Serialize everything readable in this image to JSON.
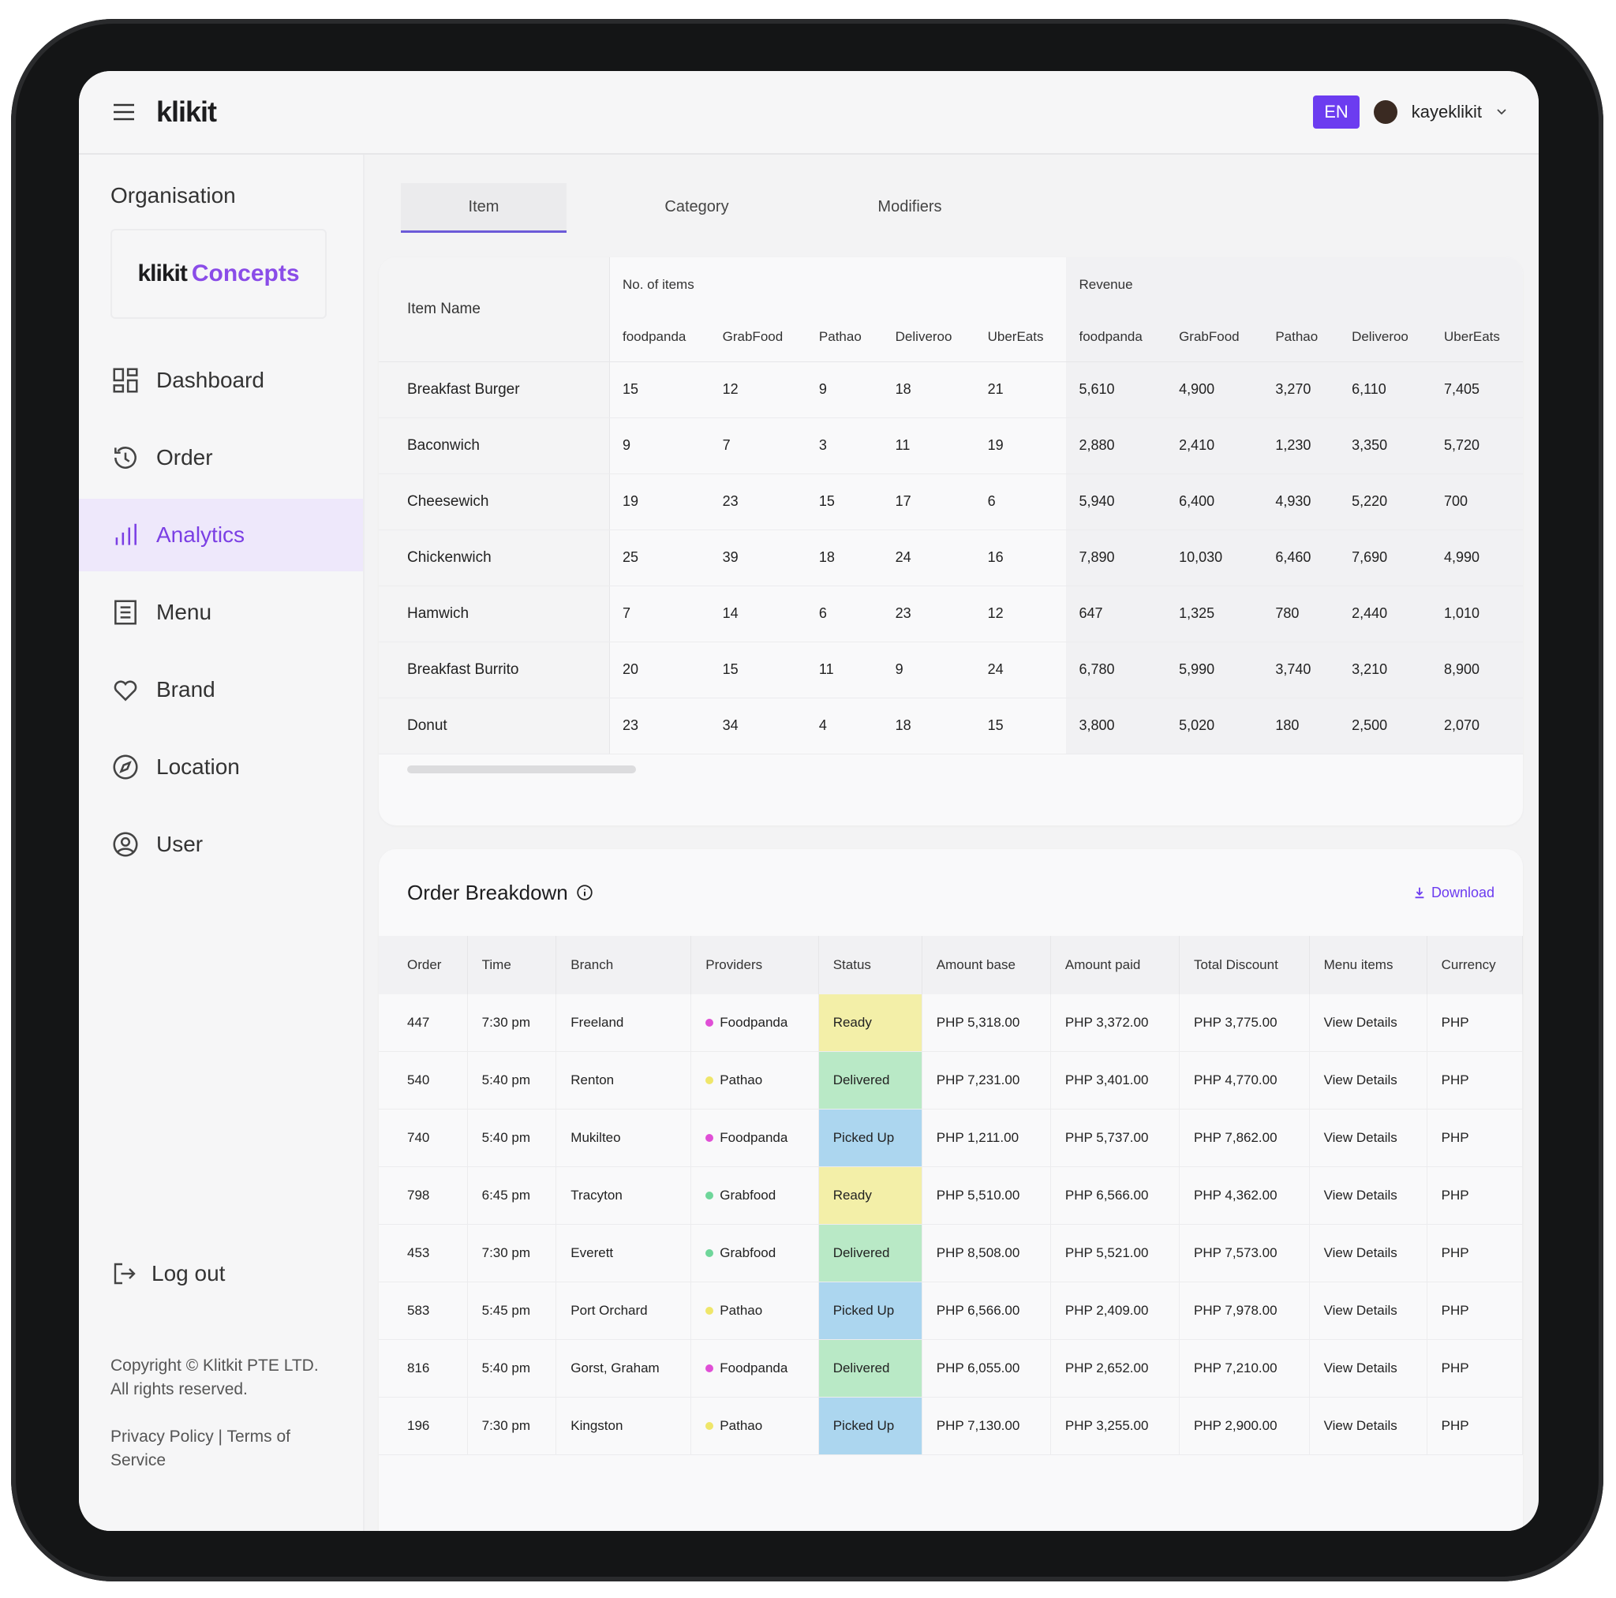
{
  "header": {
    "logo": "klikit",
    "language": "EN",
    "user": "kayeklikit"
  },
  "sidebar": {
    "organisation_label": "Organisation",
    "organisation_brand": "klikit",
    "organisation_name": "Concepts",
    "nav": [
      "Dashboard",
      "Order",
      "Analytics",
      "Menu",
      "Brand",
      "Location",
      "User"
    ],
    "active_nav": 2,
    "logout": "Log out",
    "copyright": "Copyright © Klitkit PTE LTD. All rights reserved.",
    "privacy": "Privacy Policy",
    "separator": "|",
    "terms": "Terms of Service"
  },
  "tabs": {
    "labels": [
      "Item",
      "Category",
      "Modifiers"
    ],
    "active": 0
  },
  "item_table": {
    "item_name_header": "Item Name",
    "groups": [
      "No. of items",
      "Revenue"
    ],
    "providers": [
      "foodpanda",
      "GrabFood",
      "Pathao",
      "Deliveroo",
      "UberEats"
    ],
    "rows": [
      {
        "name": "Breakfast Burger",
        "items": [
          15,
          12,
          9,
          18,
          21
        ],
        "revenue": [
          "5,610",
          "4,900",
          "3,270",
          "6,110",
          "7,405"
        ]
      },
      {
        "name": "Baconwich",
        "items": [
          9,
          7,
          3,
          11,
          19
        ],
        "revenue": [
          "2,880",
          "2,410",
          "1,230",
          "3,350",
          "5,720"
        ]
      },
      {
        "name": "Cheesewich",
        "items": [
          19,
          23,
          15,
          17,
          6
        ],
        "revenue": [
          "5,940",
          "6,400",
          "4,930",
          "5,220",
          "700"
        ]
      },
      {
        "name": "Chickenwich",
        "items": [
          25,
          39,
          18,
          24,
          16
        ],
        "revenue": [
          "7,890",
          "10,030",
          "6,460",
          "7,690",
          "4,990"
        ]
      },
      {
        "name": "Hamwich",
        "items": [
          7,
          14,
          6,
          23,
          12
        ],
        "revenue": [
          "647",
          "1,325",
          "780",
          "2,440",
          "1,010"
        ]
      },
      {
        "name": "Breakfast Burrito",
        "items": [
          20,
          15,
          11,
          9,
          24
        ],
        "revenue": [
          "6,780",
          "5,990",
          "3,740",
          "3,210",
          "8,900"
        ]
      },
      {
        "name": "Donut",
        "items": [
          23,
          34,
          4,
          18,
          15
        ],
        "revenue": [
          "3,800",
          "5,020",
          "180",
          "2,500",
          "2,070"
        ]
      }
    ]
  },
  "order_breakdown": {
    "title": "Order Breakdown",
    "download": "Download",
    "columns": [
      "Order",
      "Time",
      "Branch",
      "Providers",
      "Status",
      "Amount base",
      "Amount paid",
      "Total Discount",
      "Menu items",
      "Currency"
    ],
    "rows": [
      [
        447,
        "7:30 pm",
        "Freeland",
        "Foodpanda",
        "Ready",
        "PHP 5,318.00",
        "PHP 3,372.00",
        "PHP 3,775.00",
        "View Details",
        "PHP"
      ],
      [
        540,
        "5:40 pm",
        "Renton",
        "Pathao",
        "Delivered",
        "PHP 7,231.00",
        "PHP 3,401.00",
        "PHP 4,770.00",
        "View Details",
        "PHP"
      ],
      [
        740,
        "5:40 pm",
        "Mukilteo",
        "Foodpanda",
        "Picked Up",
        "PHP 1,211.00",
        "PHP 5,737.00",
        "PHP 7,862.00",
        "View Details",
        "PHP"
      ],
      [
        798,
        "6:45 pm",
        "Tracyton",
        "Grabfood",
        "Ready",
        "PHP 5,510.00",
        "PHP 6,566.00",
        "PHP 4,362.00",
        "View Details",
        "PHP"
      ],
      [
        453,
        "7:30 pm",
        "Everett",
        "Grabfood",
        "Delivered",
        "PHP 8,508.00",
        "PHP 5,521.00",
        "PHP 7,573.00",
        "View Details",
        "PHP"
      ],
      [
        583,
        "5:45 pm",
        "Port Orchard",
        "Pathao",
        "Picked Up",
        "PHP 6,566.00",
        "PHP 2,409.00",
        "PHP 7,978.00",
        "View Details",
        "PHP"
      ],
      [
        816,
        "5:40 pm",
        "Gorst, Graham",
        "Foodpanda",
        "Delivered",
        "PHP 6,055.00",
        "PHP 2,652.00",
        "PHP 7,210.00",
        "View Details",
        "PHP"
      ],
      [
        196,
        "7:30 pm",
        "Kingston",
        "Pathao",
        "Picked Up",
        "PHP 7,130.00",
        "PHP 3,255.00",
        "PHP 2,900.00",
        "View Details",
        "PHP"
      ]
    ],
    "status_colors": {
      "Ready": "#f3efa8",
      "Delivered": "#b9e9c6",
      "Picked Up": "#acd6ef"
    },
    "provider_colors": {
      "Foodpanda": "#e04fd6",
      "Pathao": "#efe66a",
      "Grabfood": "#6fd69a"
    }
  }
}
